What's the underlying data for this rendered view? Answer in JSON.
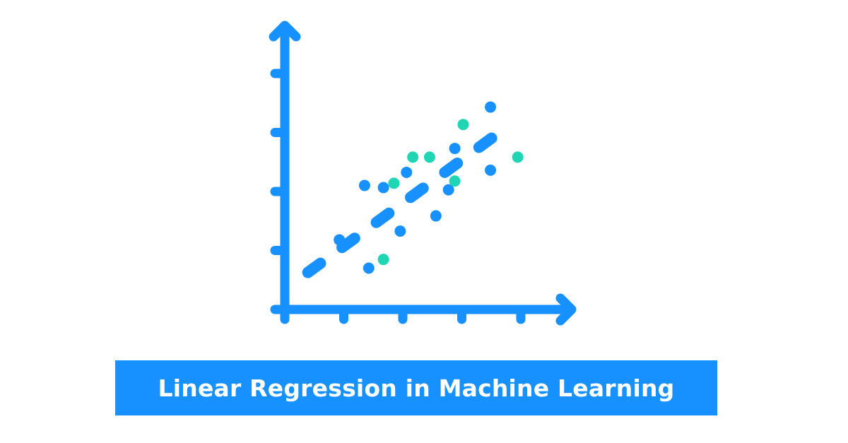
{
  "colors": {
    "axis": "#1791ff",
    "blue_point": "#1791ff",
    "teal_point": "#1fd5b4",
    "trend_line": "#1791ff",
    "banner": "#1791ff",
    "banner_text": "#ffffff"
  },
  "illustration": {
    "x_ticks": 5,
    "y_ticks": 4,
    "points": [
      {
        "x": 0.26,
        "y": 0.32,
        "group": "blue"
      },
      {
        "x": 0.4,
        "y": 0.19,
        "group": "blue"
      },
      {
        "x": 0.38,
        "y": 0.57,
        "group": "blue"
      },
      {
        "x": 0.47,
        "y": 0.56,
        "group": "blue"
      },
      {
        "x": 0.55,
        "y": 0.36,
        "group": "blue"
      },
      {
        "x": 0.58,
        "y": 0.63,
        "group": "blue"
      },
      {
        "x": 0.72,
        "y": 0.43,
        "group": "blue"
      },
      {
        "x": 0.78,
        "y": 0.55,
        "group": "blue"
      },
      {
        "x": 0.81,
        "y": 0.74,
        "group": "blue"
      },
      {
        "x": 0.98,
        "y": 0.64,
        "group": "blue"
      },
      {
        "x": 0.98,
        "y": 0.93,
        "group": "blue"
      },
      {
        "x": 0.47,
        "y": 0.23,
        "group": "teal"
      },
      {
        "x": 0.52,
        "y": 0.58,
        "group": "teal"
      },
      {
        "x": 0.61,
        "y": 0.7,
        "group": "teal"
      },
      {
        "x": 0.69,
        "y": 0.7,
        "group": "teal"
      },
      {
        "x": 0.81,
        "y": 0.59,
        "group": "teal"
      },
      {
        "x": 0.85,
        "y": 0.85,
        "group": "teal"
      },
      {
        "x": 1.11,
        "y": 0.7,
        "group": "teal"
      }
    ],
    "trend": {
      "from": [
        0.11,
        0.17
      ],
      "to": [
        1.06,
        0.84
      ]
    }
  },
  "banner": {
    "title": "Linear Regression in Machine Learning"
  }
}
